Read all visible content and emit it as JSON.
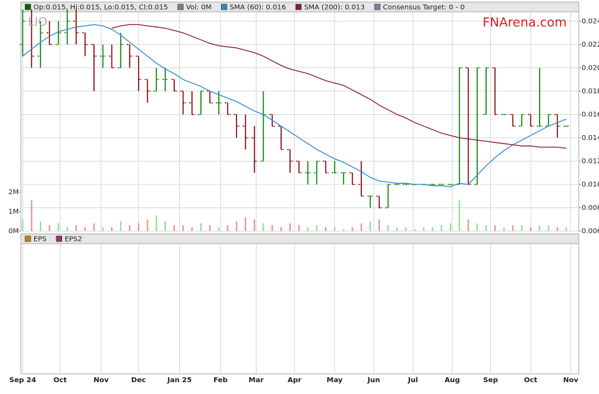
{
  "chart_data": [
    {
      "type": "ohlc",
      "ticker": "LIO",
      "brand": "FNArena.com",
      "info": [
        {
          "label": "Op:0.015, Hi:0.015, Lo:0.015, Cl:0.015",
          "color": "#006400"
        },
        {
          "label": "Vol: 0M",
          "color": "#808080"
        },
        {
          "label": "Consensus Target: 0 - 0",
          "color": "#8080a0"
        }
      ],
      "x": [
        0,
        1,
        2,
        3,
        4,
        5,
        6,
        7,
        8,
        9,
        10,
        11,
        12,
        13,
        14,
        15,
        16,
        17,
        18,
        19,
        20,
        21,
        22,
        23,
        24,
        25,
        26,
        27,
        28,
        29,
        30,
        31,
        32,
        33,
        34,
        35,
        36,
        37,
        38,
        39,
        40,
        41,
        42,
        43,
        44,
        45,
        46,
        47,
        48,
        49,
        50,
        51,
        52,
        53,
        54,
        55,
        56,
        57,
        58,
        59,
        60,
        61
      ],
      "open": [
        0.022,
        0.024,
        0.021,
        0.023,
        0.022,
        0.023,
        0.024,
        0.023,
        0.022,
        0.021,
        0.021,
        0.02,
        0.022,
        0.021,
        0.019,
        0.018,
        0.019,
        0.019,
        0.018,
        0.017,
        0.016,
        0.018,
        0.017,
        0.017,
        0.016,
        0.015,
        0.014,
        0.012,
        0.016,
        0.015,
        0.013,
        0.012,
        0.011,
        0.011,
        0.012,
        0.011,
        0.011,
        0.011,
        0.01,
        0.009,
        0.009,
        0.008,
        0.01,
        0.01,
        0.01,
        0.01,
        0.01,
        0.01,
        0.01,
        0.01,
        0.02,
        0.01,
        0.016,
        0.02,
        0.016,
        0.016,
        0.015,
        0.016,
        0.015,
        0.015,
        0.016,
        0.015
      ],
      "high": [
        0.025,
        0.025,
        0.024,
        0.024,
        0.024,
        0.025,
        0.025,
        0.023,
        0.022,
        0.022,
        0.022,
        0.023,
        0.022,
        0.021,
        0.019,
        0.02,
        0.02,
        0.019,
        0.018,
        0.018,
        0.018,
        0.018,
        0.018,
        0.017,
        0.016,
        0.016,
        0.015,
        0.018,
        0.016,
        0.015,
        0.013,
        0.012,
        0.012,
        0.012,
        0.012,
        0.012,
        0.011,
        0.011,
        0.012,
        0.009,
        0.009,
        0.01,
        0.01,
        0.01,
        0.01,
        0.01,
        0.01,
        0.01,
        0.01,
        0.02,
        0.02,
        0.02,
        0.02,
        0.02,
        0.016,
        0.016,
        0.016,
        0.016,
        0.02,
        0.016,
        0.016,
        0.015
      ],
      "low": [
        0.021,
        0.02,
        0.02,
        0.022,
        0.022,
        0.022,
        0.022,
        0.021,
        0.018,
        0.02,
        0.02,
        0.02,
        0.02,
        0.018,
        0.017,
        0.018,
        0.018,
        0.018,
        0.016,
        0.016,
        0.016,
        0.017,
        0.016,
        0.016,
        0.014,
        0.013,
        0.011,
        0.012,
        0.015,
        0.013,
        0.011,
        0.011,
        0.01,
        0.01,
        0.011,
        0.011,
        0.01,
        0.01,
        0.009,
        0.008,
        0.008,
        0.008,
        0.01,
        0.01,
        0.01,
        0.01,
        0.01,
        0.01,
        0.01,
        0.01,
        0.01,
        0.01,
        0.016,
        0.016,
        0.016,
        0.015,
        0.015,
        0.015,
        0.015,
        0.015,
        0.014,
        0.015
      ],
      "close": [
        0.024,
        0.021,
        0.023,
        0.022,
        0.023,
        0.024,
        0.023,
        0.022,
        0.021,
        0.021,
        0.02,
        0.022,
        0.021,
        0.019,
        0.018,
        0.019,
        0.019,
        0.018,
        0.017,
        0.016,
        0.018,
        0.017,
        0.017,
        0.016,
        0.015,
        0.014,
        0.012,
        0.016,
        0.015,
        0.013,
        0.012,
        0.011,
        0.011,
        0.012,
        0.011,
        0.011,
        0.011,
        0.01,
        0.009,
        0.009,
        0.008,
        0.01,
        0.01,
        0.01,
        0.01,
        0.01,
        0.01,
        0.01,
        0.01,
        0.02,
        0.01,
        0.02,
        0.02,
        0.016,
        0.016,
        0.015,
        0.016,
        0.015,
        0.015,
        0.016,
        0.015,
        0.015
      ],
      "up_color": "#008000",
      "down_color": "#800000",
      "volume": [
        0.6,
        1.6,
        0.5,
        0.3,
        0.4,
        0.2,
        0.3,
        0.2,
        0.4,
        0.2,
        0.2,
        0.5,
        0.3,
        0.4,
        0.6,
        0.8,
        0.5,
        0.3,
        0.3,
        0.2,
        0.4,
        0.3,
        0.2,
        0.3,
        0.5,
        0.7,
        0.6,
        0.4,
        0.3,
        0.2,
        0.4,
        0.3,
        0.2,
        0.3,
        0.2,
        0.2,
        0.1,
        0.2,
        0.4,
        0.5,
        0.6,
        0.3,
        0.2,
        0.2,
        0.1,
        0.2,
        0.2,
        0.3,
        0.4,
        1.6,
        0.6,
        0.4,
        0.3,
        0.3,
        0.2,
        0.3,
        0.3,
        0.2,
        0.3,
        0.3,
        0.2,
        0.2
      ],
      "volume_up_color": "#90e090",
      "volume_down_color": "#e89090",
      "series": [
        {
          "name": "SMA (60): 0.016",
          "color": "#2e8bc8",
          "values": [
            0.021,
            0.0216,
            0.0222,
            0.0227,
            0.0231,
            0.0233,
            0.0235,
            0.0236,
            0.0237,
            0.0236,
            0.0233,
            0.0228,
            0.0222,
            0.0216,
            0.021,
            0.0204,
            0.0199,
            0.0195,
            0.019,
            0.0187,
            0.0184,
            0.018,
            0.0177,
            0.0174,
            0.0171,
            0.0167,
            0.0163,
            0.016,
            0.0155,
            0.015,
            0.0145,
            0.014,
            0.0135,
            0.013,
            0.0126,
            0.0122,
            0.0119,
            0.0115,
            0.0111,
            0.0106,
            0.0103,
            0.0102,
            0.0101,
            0.0101,
            0.01,
            0.01,
            0.0099,
            0.0099,
            0.0098,
            0.0101,
            0.01,
            0.0108,
            0.0116,
            0.0123,
            0.0129,
            0.0134,
            0.0138,
            0.0142,
            0.0146,
            0.015,
            0.0153,
            0.0156
          ]
        },
        {
          "name": "SMA (200): 0.013",
          "color": "#8b1a45",
          "values": [
            null,
            null,
            null,
            null,
            null,
            null,
            null,
            null,
            null,
            null,
            0.0234,
            0.0236,
            0.0237,
            0.0237,
            0.0236,
            0.0235,
            0.0234,
            0.0232,
            0.023,
            0.0227,
            0.0224,
            0.0221,
            0.0219,
            0.0218,
            0.0217,
            0.0215,
            0.0213,
            0.021,
            0.0206,
            0.0202,
            0.0199,
            0.0197,
            0.0195,
            0.0192,
            0.0189,
            0.0187,
            0.0185,
            0.0181,
            0.0177,
            0.0173,
            0.0168,
            0.0164,
            0.016,
            0.0157,
            0.0153,
            0.015,
            0.0147,
            0.0144,
            0.0142,
            0.014,
            0.0139,
            0.0138,
            0.0137,
            0.0136,
            0.0135,
            0.0134,
            0.0133,
            0.0133,
            0.0132,
            0.0132,
            0.0132,
            0.0131
          ]
        }
      ],
      "xlim": [
        -0.2,
        62.4
      ],
      "xticks": [
        {
          "value": 0,
          "label": "Sep 24"
        },
        {
          "value": 4.2,
          "label": "Oct"
        },
        {
          "value": 8.8,
          "label": "Nov"
        },
        {
          "value": 13.0,
          "label": "Dec"
        },
        {
          "value": 17.6,
          "label": "Jan 25"
        },
        {
          "value": 22.2,
          "label": "Feb"
        },
        {
          "value": 26.2,
          "label": "Mar"
        },
        {
          "value": 30.5,
          "label": "Apr"
        },
        {
          "value": 35.0,
          "label": "May"
        },
        {
          "value": 39.4,
          "label": "Jun"
        },
        {
          "value": 43.8,
          "label": "Jul"
        },
        {
          "value": 48.2,
          "label": "Aug"
        },
        {
          "value": 52.5,
          "label": "Sep"
        },
        {
          "value": 57.0,
          "label": "Oct"
        },
        {
          "value": 61.5,
          "label": "Nov"
        }
      ],
      "ylim": [
        0.006,
        0.0248
      ],
      "yticks": [
        0.006,
        0.008,
        {
          "value": 0.01,
          "label": "0.010"
        },
        0.012,
        0.014,
        0.016,
        0.018,
        {
          "value": 0.02,
          "label": "0.020"
        },
        0.022,
        0.024
      ],
      "y2lim": [
        0,
        11.25
      ],
      "y2ticks": [
        {
          "value": 0,
          "label": "0M"
        },
        {
          "value": 1,
          "label": "1M"
        },
        {
          "value": 2,
          "label": "2M"
        }
      ],
      "grid": true
    },
    {
      "type": "line",
      "series": [
        {
          "name": "EPS",
          "color": "#b8860b",
          "values": []
        },
        {
          "name": "EPS2",
          "color": "#8b3a62",
          "values": []
        }
      ]
    }
  ]
}
